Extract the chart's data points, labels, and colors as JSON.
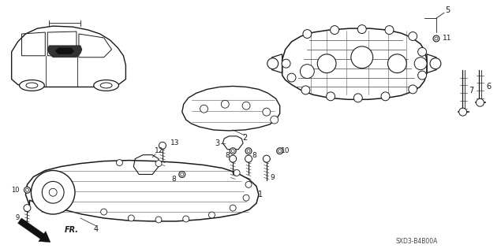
{
  "background_color": "#ffffff",
  "line_color": "#1a1a1a",
  "diagram_ref": "SXD3-B4B00A",
  "figsize": [
    6.35,
    3.2
  ],
  "dpi": 100
}
